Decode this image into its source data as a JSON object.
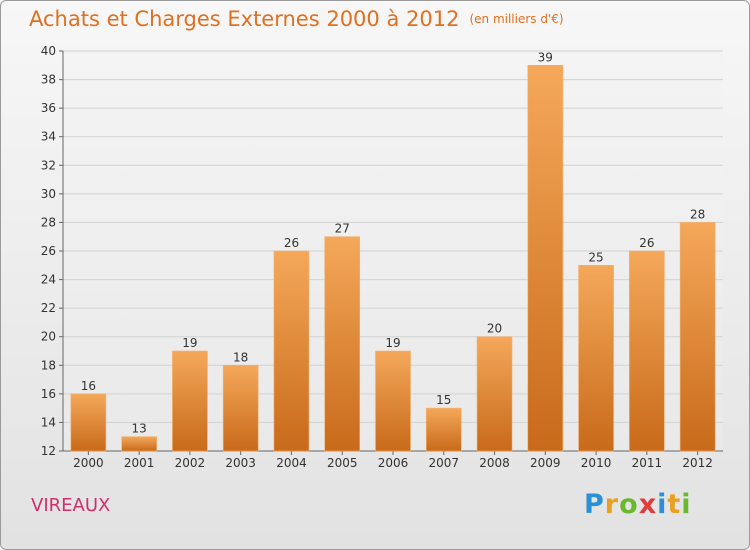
{
  "header": {
    "title": "Achats et Charges Externes 2000 à 2012",
    "subtitle": "(en milliers d'€)"
  },
  "footer": {
    "location": "VIREAUX",
    "brand_letters": [
      "P",
      "r",
      "o",
      "x",
      "i",
      "t",
      "i"
    ]
  },
  "colors": {
    "bar_top": "#f5a85a",
    "bar_bottom": "#c86a1a",
    "title": "#e07020",
    "location": "#d0306a"
  },
  "chart_data": {
    "type": "bar",
    "categories": [
      "2000",
      "2001",
      "2002",
      "2003",
      "2004",
      "2005",
      "2006",
      "2007",
      "2008",
      "2009",
      "2010",
      "2011",
      "2012"
    ],
    "values": [
      16,
      13,
      19,
      18,
      26,
      27,
      19,
      15,
      20,
      39,
      25,
      26,
      28
    ],
    "data_labels": [
      "16",
      "13",
      "19",
      "18",
      "26",
      "27",
      "19",
      "15",
      "20",
      "39",
      "25",
      "26",
      "28"
    ],
    "title": "Achats et Charges Externes 2000 à 2012",
    "subtitle": "(en milliers d'€)",
    "xlabel": "",
    "ylabel": "",
    "ylim": [
      12,
      40
    ],
    "yticks": [
      12,
      14,
      16,
      18,
      20,
      22,
      24,
      26,
      28,
      30,
      32,
      34,
      36,
      38,
      40
    ],
    "grid": true,
    "legend": "none"
  }
}
